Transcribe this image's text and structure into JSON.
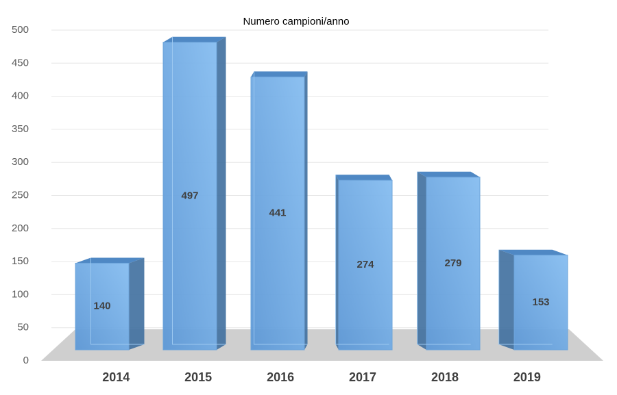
{
  "chart_data": {
    "type": "bar3d",
    "title": "Numero campioni/anno",
    "categories": [
      "2014",
      "2015",
      "2016",
      "2017",
      "2018",
      "2019"
    ],
    "values": [
      140,
      497,
      441,
      274,
      279,
      153
    ],
    "color": "#75aee6",
    "ylim": [
      0,
      500
    ],
    "yticks": [
      0,
      50,
      100,
      150,
      200,
      250,
      300,
      350,
      400,
      450,
      500
    ],
    "grid": true
  }
}
